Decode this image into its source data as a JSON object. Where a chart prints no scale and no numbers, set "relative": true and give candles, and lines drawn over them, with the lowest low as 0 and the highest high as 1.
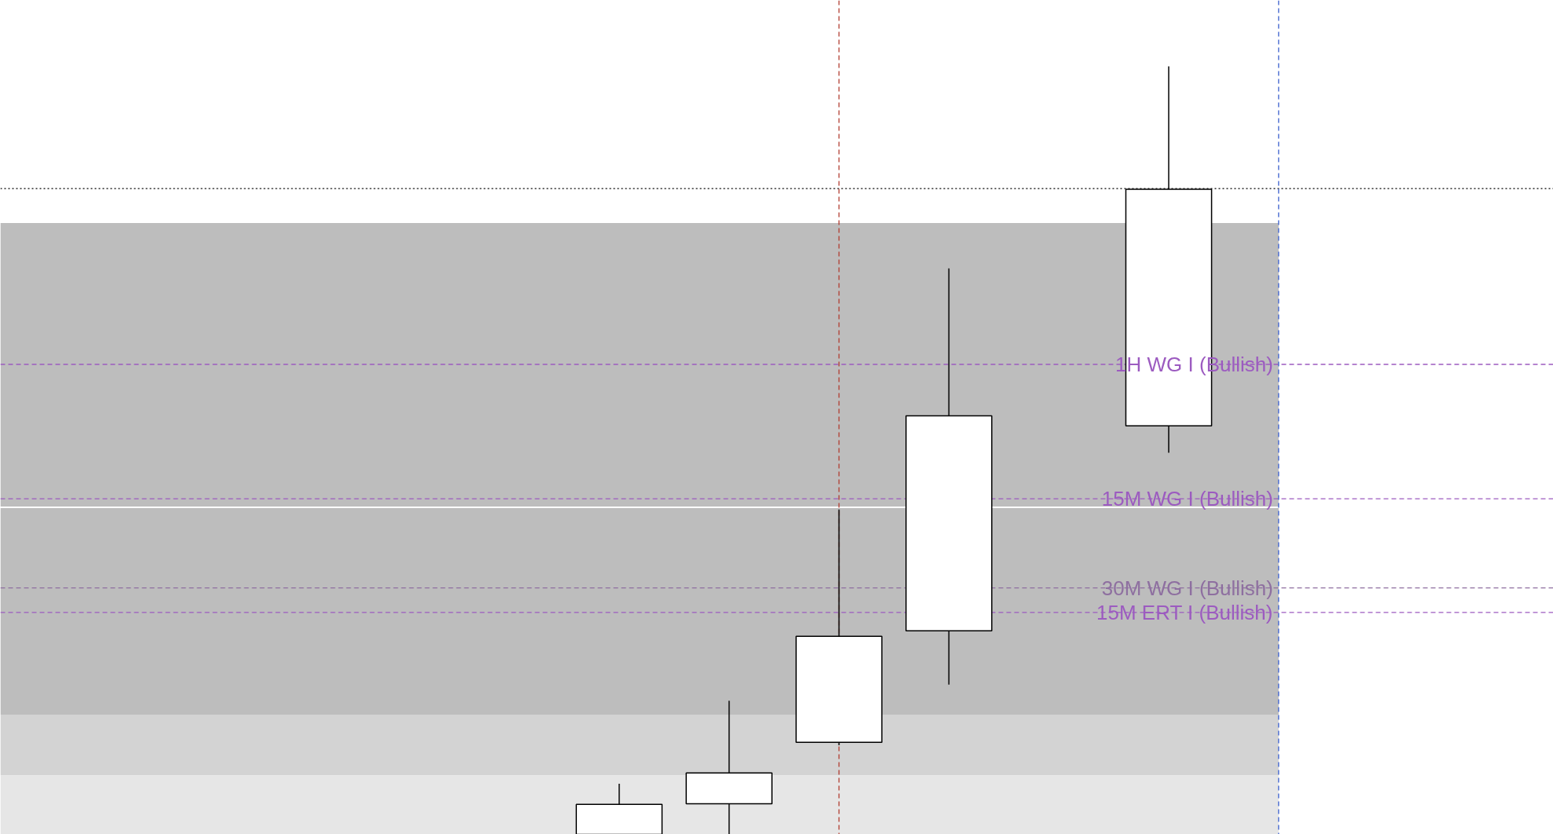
{
  "chart_data": {
    "type": "candlestick",
    "relative": true,
    "categories": [
      null,
      null,
      null,
      null,
      null,
      null
    ],
    "ohlc": [
      [
        0,
        0.066,
        0,
        0.039
      ],
      [
        0.04,
        0.174,
        0,
        0.08
      ],
      [
        0.12,
        0.423,
        0.116,
        0.258
      ],
      [
        0.265,
        0.737,
        0.195,
        0.545
      ],
      null,
      [
        0.532,
        1.0,
        0.497,
        0.84
      ]
    ],
    "ref_lines": [
      {
        "axis": "y",
        "value": 0.612,
        "label": "1H WG I (Bullish)",
        "color": "#9c5bc0",
        "line_style": "dashed"
      },
      {
        "axis": "y",
        "value": 0.437,
        "label": "15M WG I (Bullish)",
        "color": "#9c5bc0",
        "line_style": "dashed"
      },
      {
        "axis": "y",
        "value": 0.321,
        "label": "30M WG I (Bullish)",
        "color": "#8e6fa0",
        "line_style": "dashed"
      },
      {
        "axis": "y",
        "value": 0.289,
        "label": "15M ERT I (Bullish)",
        "color": "#9c5bc0",
        "line_style": "dashed"
      },
      {
        "axis": "y",
        "value": 0.841,
        "label": null,
        "color": "#000000",
        "line_style": "dotted"
      }
    ],
    "bands": [
      {
        "axis": "y",
        "from": 0.427,
        "to": 0.796,
        "label": null,
        "color": "#bdbdbd"
      },
      {
        "axis": "y",
        "from": 0.156,
        "to": 0.425,
        "label": null,
        "color": "#bdbdbd"
      },
      {
        "axis": "y",
        "from": 0.077,
        "to": 0.156,
        "label": null,
        "color": "#d3d3d3"
      },
      {
        "axis": "y",
        "from": 0,
        "to": 0.077,
        "label": null,
        "color": "#e6e6e6"
      }
    ]
  }
}
